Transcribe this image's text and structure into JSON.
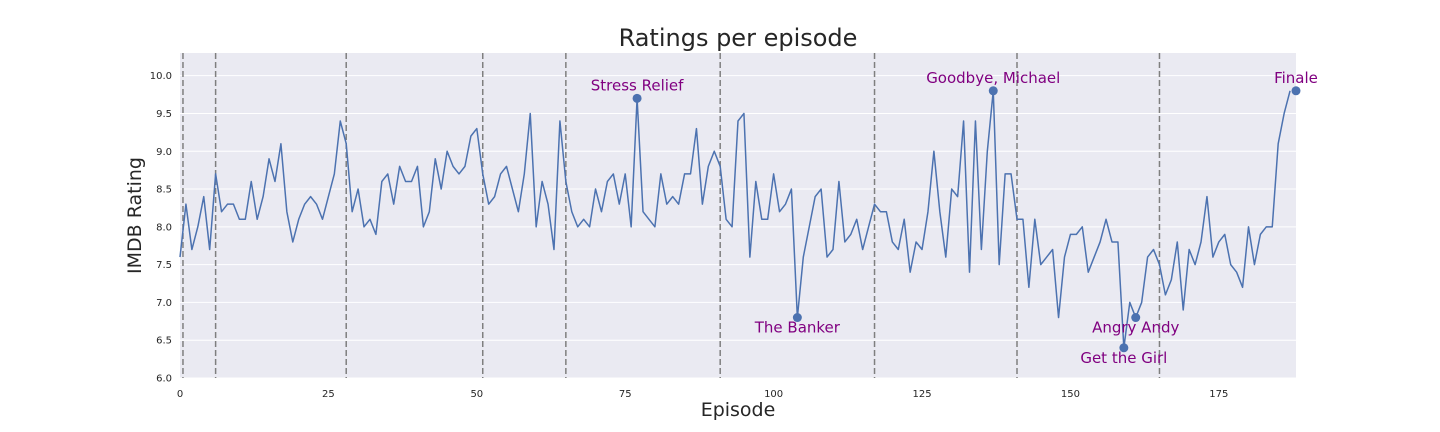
{
  "chart_data": {
    "type": "line",
    "title": "Ratings per episode",
    "xlabel": "Episode",
    "ylabel": "IMDB Rating",
    "xlim": [
      0,
      188
    ],
    "ylim": [
      6.0,
      10.3
    ],
    "xticks": [
      0,
      25,
      50,
      75,
      100,
      125,
      150,
      175
    ],
    "yticks": [
      6.0,
      6.5,
      7.0,
      7.5,
      8.0,
      8.5,
      9.0,
      9.5,
      10.0
    ],
    "grid": true,
    "colors": {
      "background": "#eaeaf2",
      "grid": "#ffffff",
      "line": "#4c72b0",
      "annotation": "#800080",
      "season_divider": "#7f7f7f"
    },
    "season_boundaries": [
      0.5,
      6,
      28,
      51,
      65,
      91,
      117,
      141,
      165
    ],
    "series": [
      {
        "values": [
          7.6,
          8.3,
          7.7,
          8.0,
          8.4,
          7.7,
          8.7,
          8.2,
          8.3,
          8.3,
          8.1,
          8.1,
          8.6,
          8.1,
          8.4,
          8.9,
          8.6,
          9.1,
          8.2,
          7.8,
          8.1,
          8.3,
          8.4,
          8.3,
          8.1,
          8.4,
          8.7,
          9.4,
          9.1,
          8.2,
          8.5,
          8.0,
          8.1,
          7.9,
          8.6,
          8.7,
          8.3,
          8.8,
          8.6,
          8.6,
          8.8,
          8.0,
          8.2,
          8.9,
          8.5,
          9.0,
          8.8,
          8.7,
          8.8,
          9.2,
          9.3,
          8.7,
          8.3,
          8.4,
          8.7,
          8.8,
          8.5,
          8.2,
          8.7,
          9.5,
          8.0,
          8.6,
          8.3,
          7.7,
          9.4,
          8.6,
          8.2,
          8.0,
          8.1,
          8.0,
          8.5,
          8.2,
          8.6,
          8.7,
          8.3,
          8.7,
          8.0,
          9.7,
          8.2,
          8.1,
          8.0,
          8.7,
          8.3,
          8.4,
          8.3,
          8.7,
          8.7,
          9.3,
          8.3,
          8.8,
          9.0,
          8.8,
          8.1,
          8.0,
          9.4,
          9.5,
          7.6,
          8.6,
          8.1,
          8.1,
          8.7,
          8.2,
          8.3,
          8.5,
          6.8,
          7.6,
          8.0,
          8.4,
          8.5,
          7.6,
          7.7,
          8.6,
          7.8,
          7.9,
          8.1,
          7.7,
          8.0,
          8.3,
          8.2,
          8.2,
          7.8,
          7.7,
          8.1,
          7.4,
          7.8,
          7.7,
          8.2,
          9.0,
          8.2,
          7.6,
          8.5,
          8.4,
          9.4,
          7.4,
          9.4,
          7.7,
          9.0,
          9.8,
          7.5,
          8.7,
          8.7,
          8.1,
          8.1,
          7.2,
          8.1,
          7.5,
          7.6,
          7.7,
          6.8,
          7.6,
          7.9,
          7.9,
          8.0,
          7.4,
          7.6,
          7.8,
          8.1,
          7.8,
          7.8,
          6.4,
          7.0,
          6.8,
          7.0,
          7.6,
          7.7,
          7.5,
          7.1,
          7.3,
          7.8,
          6.9,
          7.7,
          7.5,
          7.8,
          8.4,
          7.6,
          7.8,
          7.9,
          7.5,
          7.4,
          7.2,
          8.0,
          7.5,
          7.9,
          8.0,
          8.0,
          9.1,
          9.5,
          9.8
        ]
      }
    ],
    "annotations": [
      {
        "label": "Stress Relief",
        "x": 77,
        "y": 9.7,
        "placement": "above"
      },
      {
        "label": "The Banker",
        "x": 104,
        "y": 6.8,
        "placement": "below"
      },
      {
        "label": "Goodbye, Michael",
        "x": 137,
        "y": 9.8,
        "placement": "above"
      },
      {
        "label": "Get the Girl",
        "x": 159,
        "y": 6.4,
        "placement": "below"
      },
      {
        "label": "Angry Andy",
        "x": 161,
        "y": 6.8,
        "placement": "below"
      },
      {
        "label": "Finale",
        "x": 188,
        "y": 9.8,
        "placement": "above"
      }
    ]
  }
}
